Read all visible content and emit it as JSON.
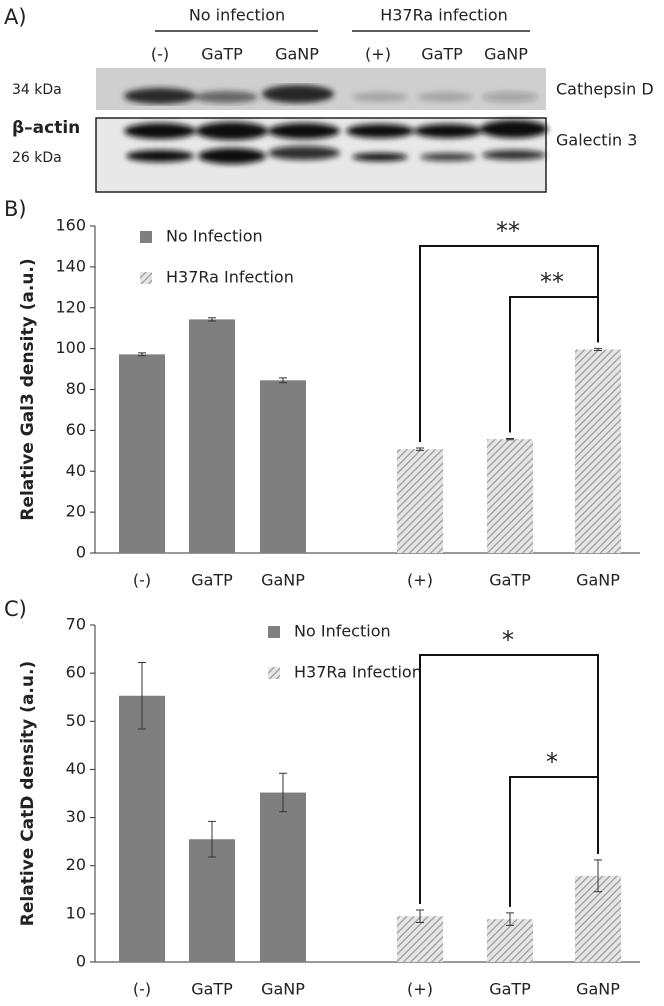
{
  "panel_labels": [
    "A)",
    "B)",
    "C)"
  ],
  "blot": {
    "groups": [
      "No infection",
      "H37Ra infection"
    ],
    "lanes": [
      "(-)",
      "GaTP",
      "GaNP",
      "(+)",
      "GaTP",
      "GaNP"
    ],
    "left_labels": [
      "34 kDa",
      "β–actin",
      "26 kDa"
    ],
    "right_labels": [
      "Cathepsin D",
      "Galectin 3"
    ]
  },
  "chart_data": [
    {
      "type": "bar",
      "ylabel": "Relative Gal3 density (a.u.)",
      "categories": [
        "(-)",
        "GaTP",
        "GaNP",
        "(+)",
        "GaTP",
        "GaNP"
      ],
      "series": [
        {
          "name": "No Infection",
          "color": "#7f7f7f",
          "values": [
            97.2,
            114.3,
            84.5,
            null,
            null,
            null
          ],
          "errors": [
            0.7,
            0.8,
            1.2,
            null,
            null,
            null
          ]
        },
        {
          "name": "H37Ra Infection",
          "color": "#a6a6a6",
          "hatch": true,
          "values": [
            null,
            null,
            null,
            50.8,
            55.7,
            99.6
          ],
          "errors": [
            null,
            null,
            null,
            0.6,
            0.3,
            0.5
          ]
        }
      ],
      "ylim": [
        0,
        160
      ],
      "yticks": [
        0,
        20,
        40,
        60,
        80,
        100,
        120,
        140,
        160
      ],
      "annotations": [
        "**",
        "**"
      ]
    },
    {
      "type": "bar",
      "ylabel": "Relative CatD density (a.u.)",
      "categories": [
        "(-)",
        "GaTP",
        "GaNP",
        "(+)",
        "GaTP",
        "GaNP"
      ],
      "series": [
        {
          "name": "No Infection",
          "color": "#7f7f7f",
          "values": [
            55.3,
            25.5,
            35.2,
            null,
            null,
            null
          ],
          "errors": [
            6.9,
            3.7,
            4.0,
            null,
            null,
            null
          ]
        },
        {
          "name": "H37Ra Infection",
          "color": "#a6a6a6",
          "hatch": true,
          "values": [
            null,
            null,
            null,
            9.5,
            8.9,
            17.9
          ],
          "errors": [
            null,
            null,
            null,
            1.3,
            1.3,
            3.3
          ]
        }
      ],
      "ylim": [
        0,
        70
      ],
      "yticks": [
        0,
        10,
        20,
        30,
        40,
        50,
        60,
        70
      ],
      "annotations": [
        "*",
        "*"
      ]
    }
  ]
}
